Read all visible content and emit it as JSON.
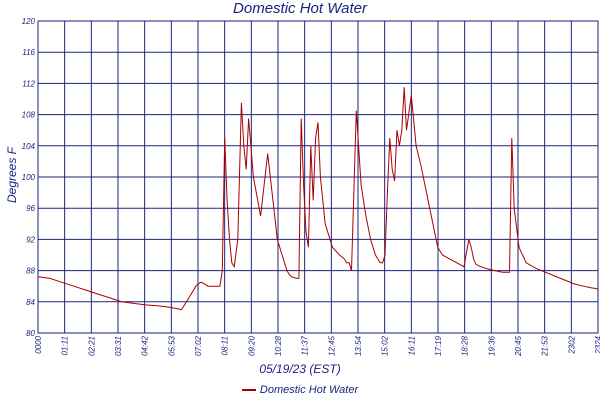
{
  "chart_data": {
    "type": "line",
    "title": "Domestic Hot Water",
    "xlabel": "05/19/23 (EST)",
    "ylabel": "Degrees F",
    "ylim": [
      80,
      120
    ],
    "yticks": [
      80,
      84,
      88,
      92,
      96,
      100,
      104,
      108,
      112,
      116,
      120
    ],
    "xticks": [
      "0000",
      "01:11",
      "02:21",
      "03:31",
      "04:42",
      "05:53",
      "07:02",
      "08:11",
      "09:20",
      "10:28",
      "11:37",
      "12:45",
      "13:54",
      "15:02",
      "16:11",
      "17:19",
      "18:28",
      "19:36",
      "20:45",
      "21:53",
      "2302",
      "2324"
    ],
    "grid": true,
    "legend": "bottom",
    "line_color": "#aa0000",
    "grid_color": "#1a237e",
    "series": [
      {
        "name": "Domestic Hot Water",
        "x": [
          0,
          0.5,
          1.0,
          1.5,
          2.0,
          2.5,
          3.0,
          3.5,
          4.0,
          4.5,
          5.0,
          5.5,
          6.0,
          6.3,
          6.5,
          6.6,
          6.7,
          6.8,
          6.9,
          7.0,
          7.1,
          7.3,
          7.5,
          7.6,
          7.7,
          7.8,
          7.9,
          8.0,
          8.1,
          8.2,
          8.35,
          8.5,
          8.6,
          8.7,
          8.8,
          9.0,
          9.3,
          9.6,
          10.0,
          10.3,
          10.4,
          10.5,
          10.6,
          10.8,
          10.9,
          11.0,
          11.1,
          11.2,
          11.3,
          11.4,
          11.5,
          11.6,
          11.7,
          11.8,
          12.0,
          12.3,
          12.6,
          12.8,
          12.9,
          13.0,
          13.1,
          13.3,
          13.5,
          13.7,
          13.9,
          14.0,
          14.1,
          14.2,
          14.3,
          14.4,
          14.5,
          14.6,
          14.7,
          14.8,
          14.9,
          15.0,
          15.1,
          15.2,
          15.3,
          15.4,
          15.6,
          15.8,
          16.0,
          16.3,
          16.5,
          16.6,
          16.7,
          16.9,
          17.2,
          17.5,
          17.8,
          18.0,
          18.1,
          18.2,
          18.3,
          18.5,
          18.8,
          19.1,
          19.4,
          19.6,
          19.7,
          19.8,
          19.9,
          20.1,
          20.4,
          20.8,
          21.2,
          21.6,
          22.0,
          22.4,
          22.8,
          23.1,
          23.3,
          23.4
        ],
        "values": [
          87.2,
          87.0,
          86.5,
          86.0,
          85.5,
          85.0,
          84.5,
          84.0,
          83.8,
          83.6,
          83.5,
          83.3,
          83.0,
          84.5,
          85.5,
          86.0,
          86.3,
          86.5,
          86.4,
          86.2,
          86.0,
          86.0,
          86.0,
          86.0,
          88.0,
          105.0,
          97.0,
          92.0,
          89.0,
          88.5,
          92.0,
          109.5,
          104.0,
          101.0,
          107.5,
          100.0,
          95.0,
          103.0,
          92.0,
          89.0,
          88.0,
          87.5,
          87.2,
          87.0,
          87.0,
          107.5,
          99.0,
          93.0,
          91.0,
          104.0,
          97.0,
          105.0,
          107.0,
          100.0,
          94.0,
          91.0,
          90.0,
          89.5,
          89.0,
          89.0,
          88.0,
          108.5,
          99.0,
          95.0,
          92.0,
          91.0,
          90.0,
          89.5,
          89.0,
          89.0,
          90.0,
          98.0,
          105.0,
          101.0,
          99.5,
          106.0,
          104.0,
          106.0,
          111.5,
          106.0,
          110.5,
          104.0,
          101.5,
          97.0,
          94.0,
          92.5,
          91.0,
          90.0,
          89.5,
          89.0,
          88.5,
          92.0,
          91.0,
          89.5,
          88.8,
          88.5,
          88.2,
          88.0,
          87.8,
          87.8,
          87.8,
          105.0,
          96.0,
          91.0,
          89.0,
          88.3,
          87.8,
          87.3,
          86.8,
          86.3,
          86.0,
          85.8,
          85.7,
          85.6
        ]
      }
    ]
  }
}
